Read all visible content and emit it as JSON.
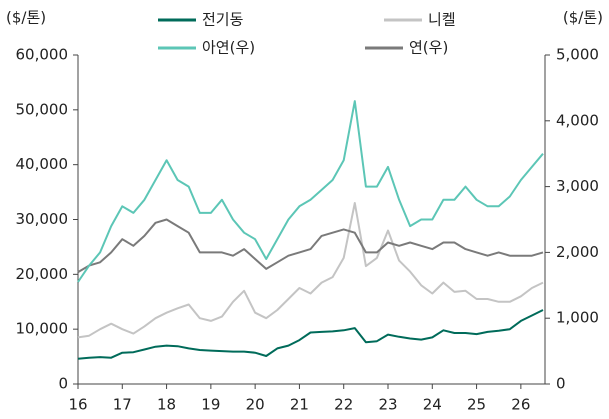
{
  "chart_data": {
    "type": "line",
    "y_label": "($/톤)",
    "y2_label": "($/톤)",
    "x": [
      16,
      16.25,
      16.5,
      16.75,
      17,
      17.25,
      17.5,
      17.75,
      18,
      18.25,
      18.5,
      18.75,
      19,
      19.25,
      19.5,
      19.75,
      20,
      20.25,
      20.5,
      20.75,
      21,
      21.25,
      21.5,
      21.75,
      22,
      22.25,
      22.5,
      22.75,
      23,
      23.25,
      23.5,
      23.75,
      24,
      24.25,
      24.5,
      24.75,
      25,
      25.25,
      25.5,
      25.75,
      26,
      26.25,
      26.5
    ],
    "xlim": [
      16,
      26.5
    ],
    "xticks": [
      16,
      17,
      18,
      19,
      20,
      21,
      22,
      23,
      24,
      25,
      26
    ],
    "ylim": [
      0,
      60000
    ],
    "yticks": [
      0,
      {
        "value": 10000,
        "label": "10,000"
      },
      {
        "value": 20000,
        "label": "20,000"
      },
      {
        "value": 30000,
        "label": "30,000"
      },
      {
        "value": 40000,
        "label": "40,000"
      },
      {
        "value": 50000,
        "label": "50,000"
      },
      {
        "value": 60000,
        "label": "60,000"
      }
    ],
    "y2lim": [
      0,
      5000
    ],
    "y2ticks": [
      0,
      {
        "value": 1000,
        "label": "1,000"
      },
      {
        "value": 2000,
        "label": "2,000"
      },
      {
        "value": 3000,
        "label": "3,000"
      },
      {
        "value": 4000,
        "label": "4,000"
      },
      {
        "value": 5000,
        "label": "5,000"
      }
    ],
    "series": [
      {
        "name": "전기동",
        "color": "#006b5a",
        "values": [
          4600,
          4800,
          4900,
          4800,
          5700,
          5800,
          6300,
          6800,
          7000,
          6900,
          6500,
          6200,
          6100,
          6000,
          5900,
          5900,
          5700,
          5100,
          6500,
          7000,
          8000,
          9400,
          9500,
          9600,
          9800,
          10200,
          7600,
          7800,
          9000,
          8600,
          8300,
          8100,
          8500,
          9800,
          9300,
          9300,
          9100,
          9500,
          9700,
          10000,
          11500,
          12500,
          13500
        ]
      },
      {
        "name": "니켈",
        "color": "#c4c4c4",
        "values": [
          8500,
          8800,
          10000,
          11000,
          10000,
          9200,
          10500,
          12000,
          13000,
          13800,
          14500,
          12000,
          11500,
          12300,
          15000,
          17000,
          13000,
          12000,
          13500,
          15500,
          17500,
          16500,
          18500,
          19500,
          23000,
          33000,
          21500,
          23000,
          28000,
          22500,
          20500,
          18000,
          16500,
          18500,
          16800,
          17000,
          15500,
          15500,
          15000,
          15000,
          16000,
          17500,
          18500
        ]
      },
      {
        "name": "아연(우)",
        "color": "#5cc6b6",
        "axis": "y2",
        "values": [
          1550,
          1800,
          2000,
          2400,
          2700,
          2600,
          2800,
          3100,
          3400,
          3100,
          3000,
          2600,
          2600,
          2800,
          2500,
          2300,
          2200,
          1900,
          2200,
          2500,
          2700,
          2800,
          2950,
          3100,
          3400,
          4300,
          3000,
          3000,
          3300,
          2800,
          2400,
          2500,
          2500,
          2800,
          2800,
          3000,
          2800,
          2700,
          2700,
          2850,
          3100,
          3300,
          3500
        ]
      },
      {
        "name": "연(우)",
        "color": "#7a7a7a",
        "axis": "y2",
        "values": [
          1700,
          1800,
          1850,
          2000,
          2200,
          2100,
          2250,
          2450,
          2500,
          2400,
          2300,
          2000,
          2000,
          2000,
          1950,
          2050,
          1900,
          1750,
          1850,
          1950,
          2000,
          2050,
          2250,
          2300,
          2350,
          2300,
          2000,
          2000,
          2150,
          2100,
          2150,
          2100,
          2050,
          2150,
          2150,
          2050,
          2000,
          1950,
          2000,
          1950,
          1950,
          1950,
          2000
        ]
      }
    ]
  }
}
